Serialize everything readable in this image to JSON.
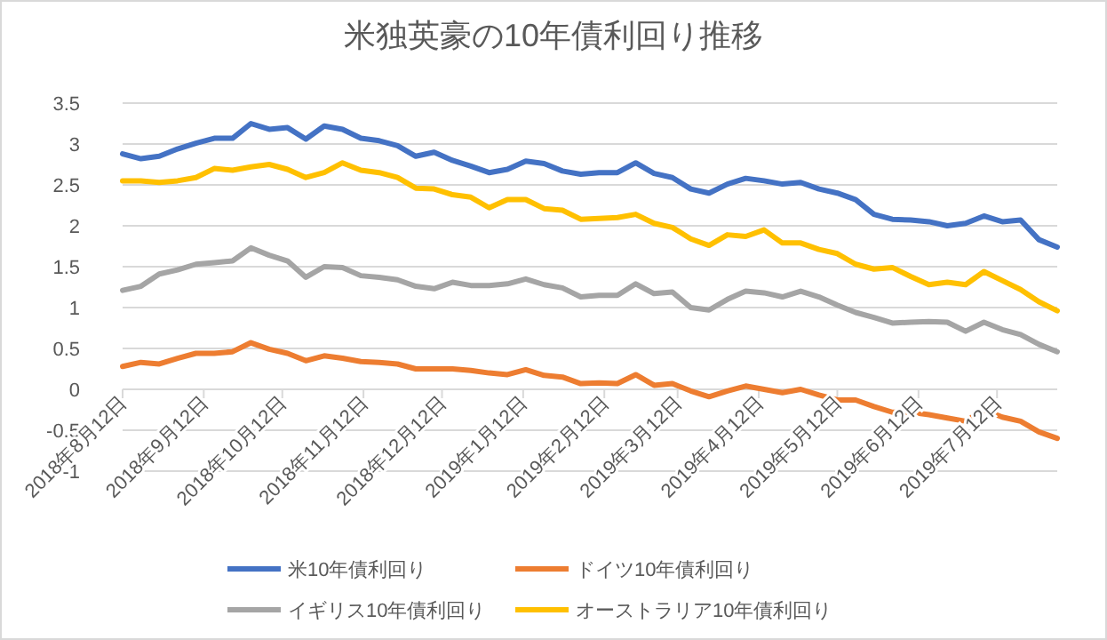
{
  "chart_data": {
    "type": "line",
    "title": "米独英豪の10年債利回り推移",
    "x": [
      "2018-08-12",
      "2018-08-19",
      "2018-08-26",
      "2018-09-02",
      "2018-09-09",
      "2018-09-16",
      "2018-09-23",
      "2018-09-30",
      "2018-10-07",
      "2018-10-14",
      "2018-10-21",
      "2018-10-28",
      "2018-11-04",
      "2018-11-11",
      "2018-11-18",
      "2018-11-25",
      "2018-12-02",
      "2018-12-09",
      "2018-12-16",
      "2018-12-23",
      "2018-12-30",
      "2019-01-06",
      "2019-01-13",
      "2019-01-20",
      "2019-01-27",
      "2019-02-03",
      "2019-02-10",
      "2019-02-17",
      "2019-02-24",
      "2019-03-03",
      "2019-03-10",
      "2019-03-17",
      "2019-03-24",
      "2019-03-31",
      "2019-04-07",
      "2019-04-14",
      "2019-04-21",
      "2019-04-28",
      "2019-05-05",
      "2019-05-12",
      "2019-05-19",
      "2019-05-26",
      "2019-06-02",
      "2019-06-09",
      "2019-06-16",
      "2019-06-23",
      "2019-06-30",
      "2019-07-07",
      "2019-07-14",
      "2019-07-21",
      "2019-07-28",
      "2019-08-04"
    ],
    "series": [
      {
        "name": "米10年債利回り",
        "color": "#4472c4",
        "values": [
          2.88,
          2.82,
          2.85,
          2.94,
          3.01,
          3.07,
          3.07,
          3.25,
          3.18,
          3.2,
          3.06,
          3.22,
          3.18,
          3.07,
          3.04,
          2.98,
          2.85,
          2.9,
          2.8,
          2.73,
          2.65,
          2.69,
          2.79,
          2.76,
          2.67,
          2.63,
          2.65,
          2.65,
          2.77,
          2.64,
          2.59,
          2.45,
          2.4,
          2.51,
          2.58,
          2.55,
          2.51,
          2.53,
          2.45,
          2.4,
          2.32,
          2.14,
          2.08,
          2.07,
          2.05,
          2.0,
          2.03,
          2.12,
          2.05,
          2.07,
          1.83,
          1.74
        ]
      },
      {
        "name": "ドイツ10年債利回り",
        "color": "#ed7d31",
        "values": [
          0.28,
          0.33,
          0.31,
          0.38,
          0.44,
          0.44,
          0.46,
          0.57,
          0.49,
          0.44,
          0.35,
          0.41,
          0.38,
          0.34,
          0.33,
          0.31,
          0.25,
          0.25,
          0.25,
          0.23,
          0.2,
          0.18,
          0.24,
          0.17,
          0.15,
          0.07,
          0.08,
          0.07,
          0.18,
          0.05,
          0.07,
          -0.02,
          -0.09,
          -0.02,
          0.04,
          0.0,
          -0.04,
          0.0,
          -0.07,
          -0.13,
          -0.13,
          -0.21,
          -0.28,
          -0.28,
          -0.31,
          -0.35,
          -0.39,
          -0.25,
          -0.34,
          -0.39,
          -0.52,
          -0.6
        ]
      },
      {
        "name": "イギリス10年債利回り",
        "color": "#a5a5a5",
        "values": [
          1.21,
          1.26,
          1.41,
          1.46,
          1.53,
          1.55,
          1.57,
          1.73,
          1.64,
          1.57,
          1.37,
          1.5,
          1.49,
          1.39,
          1.37,
          1.34,
          1.26,
          1.23,
          1.31,
          1.27,
          1.27,
          1.29,
          1.35,
          1.28,
          1.24,
          1.13,
          1.15,
          1.15,
          1.29,
          1.17,
          1.19,
          1.0,
          0.97,
          1.1,
          1.2,
          1.18,
          1.13,
          1.2,
          1.13,
          1.03,
          0.94,
          0.88,
          0.81,
          0.82,
          0.83,
          0.82,
          0.71,
          0.82,
          0.73,
          0.67,
          0.55,
          0.46
        ]
      },
      {
        "name": "オーストラリア10年債利回り",
        "color": "#ffc000",
        "values": [
          2.55,
          2.55,
          2.53,
          2.55,
          2.59,
          2.7,
          2.68,
          2.72,
          2.75,
          2.69,
          2.59,
          2.65,
          2.77,
          2.68,
          2.65,
          2.59,
          2.46,
          2.45,
          2.38,
          2.35,
          2.22,
          2.32,
          2.32,
          2.21,
          2.19,
          2.08,
          2.09,
          2.1,
          2.14,
          2.03,
          1.98,
          1.84,
          1.76,
          1.89,
          1.87,
          1.95,
          1.79,
          1.79,
          1.71,
          1.66,
          1.53,
          1.47,
          1.49,
          1.38,
          1.28,
          1.31,
          1.28,
          1.44,
          1.33,
          1.22,
          1.07,
          0.96
        ]
      }
    ],
    "xlim": [
      "2018-08-12",
      "2019-08-04"
    ],
    "xticks": [
      {
        "value": "2018-08-12",
        "label": "2018年8月12日"
      },
      {
        "value": "2018-09-12",
        "label": "2018年9月12日"
      },
      {
        "value": "2018-10-12",
        "label": "2018年10月12日"
      },
      {
        "value": "2018-11-12",
        "label": "2018年11月12日"
      },
      {
        "value": "2018-12-12",
        "label": "2018年12月12日"
      },
      {
        "value": "2019-01-12",
        "label": "2019年1月12日"
      },
      {
        "value": "2019-02-12",
        "label": "2019年2月12日"
      },
      {
        "value": "2019-03-12",
        "label": "2019年3月12日"
      },
      {
        "value": "2019-04-12",
        "label": "2019年4月12日"
      },
      {
        "value": "2019-05-12",
        "label": "2019年5月12日"
      },
      {
        "value": "2019-06-12",
        "label": "2019年6月12日"
      },
      {
        "value": "2019-07-12",
        "label": "2019年7月12日"
      }
    ],
    "ylim": [
      -1,
      3.5
    ],
    "yticks": [
      -1,
      -0.5,
      0,
      0.5,
      1,
      1.5,
      2,
      2.5,
      3,
      3.5
    ],
    "grid": "y",
    "legend": "bottom",
    "marker": "none",
    "line_style": "solid"
  }
}
